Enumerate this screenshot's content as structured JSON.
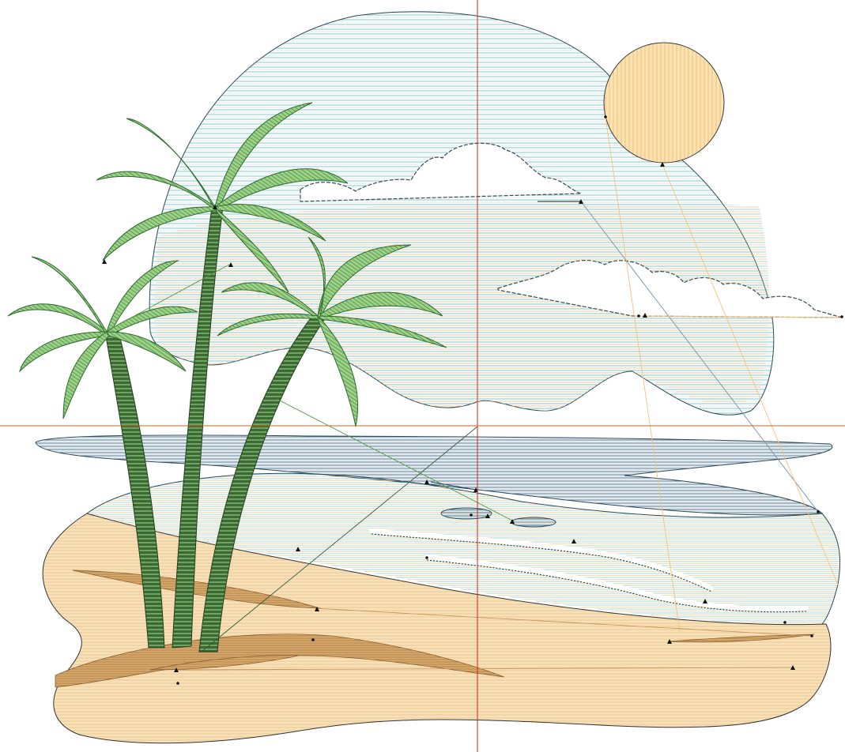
{
  "design": {
    "colors": {
      "sky_lines": "#7fc4c8",
      "sky_warm": "#f2c27a",
      "sun_fill": "#fbe2b4",
      "sun_lines": "#f2b85a",
      "sea_dark": "#4f7388",
      "sea_light": "#8ccfcf",
      "sand": "#f5d9a6",
      "sand_lines": "#e3b877",
      "sand_bar": "#c9955a",
      "palm_leaf": "#6db35a",
      "palm_outline": "#2e6a2e",
      "trunk": "#3a6b33",
      "trunk_dark": "#213f20",
      "guide_line": "#d0251c",
      "guide_line_h": "#c8681c",
      "travel": "#2b3f60",
      "outline": "#333333"
    },
    "icons": [
      "stitch-node-marker-icon",
      "palm-tree-icon",
      "sun-icon",
      "cloud-icon"
    ]
  }
}
